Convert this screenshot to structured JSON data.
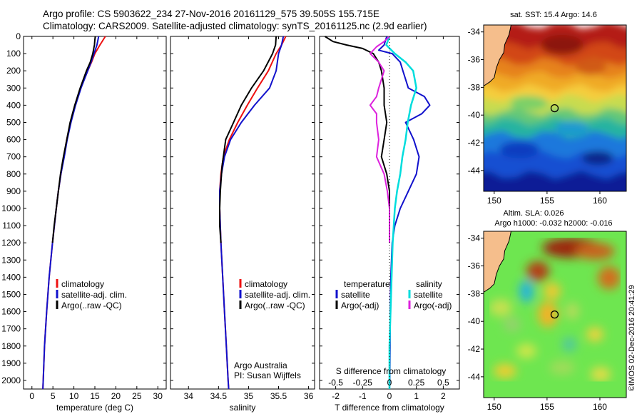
{
  "header": {
    "line1": "Argo profile: CS 5903622_234 27-Nov-2016 20161129_575 39.505S 155.715E",
    "line2": "Climatology: CARS2009. Satellite-adjusted climatology: synTS_20161125.nc (2.9d earlier)"
  },
  "colors": {
    "climatology": "#ee1111",
    "satellite": "#1111cc",
    "argo": "#000000",
    "sat_salinity": "#00dddd",
    "argo_adj_salinity": "#dd22dd",
    "land": "#f5be8c"
  },
  "chart_data": [
    {
      "type": "line",
      "title": "",
      "xlabel": "temperature (deg C)",
      "ylabel": "",
      "xlim": [
        -2,
        32
      ],
      "ylim": [
        2050,
        0
      ],
      "x_ticks": [
        "0",
        "5",
        "10",
        "15",
        "20",
        "25",
        "30"
      ],
      "y_ticks": [
        "0",
        "100",
        "200",
        "300",
        "400",
        "500",
        "600",
        "700",
        "800",
        "900",
        "1000",
        "1100",
        "1200",
        "1300",
        "1400",
        "1500",
        "1600",
        "1700",
        "1800",
        "1900",
        "2000"
      ],
      "legend": [
        "climatology",
        "satellite-adj. clim.",
        "Argo(..raw -QC)"
      ],
      "series": [
        {
          "name": "climatology",
          "depth": [
            0,
            50,
            100,
            150,
            200,
            300,
            400,
            500,
            600,
            700,
            800,
            900,
            1000,
            1200,
            1400,
            1600,
            1800,
            2000,
            2050
          ],
          "values": [
            17.5,
            16.2,
            15.0,
            14.2,
            13.3,
            11.6,
            10.3,
            9.2,
            8.3,
            7.6,
            6.9,
            6.3,
            5.8,
            4.9,
            4.1,
            3.5,
            3.0,
            2.7,
            2.6
          ]
        },
        {
          "name": "satellite-adj. clim.",
          "depth": [
            0,
            50,
            100,
            150,
            200,
            300,
            400,
            500,
            600,
            700,
            800,
            900,
            1000,
            1200,
            1400,
            1600,
            1800,
            2000,
            2050
          ],
          "values": [
            15.9,
            15.5,
            14.8,
            14.1,
            13.3,
            11.7,
            10.4,
            9.3,
            8.4,
            7.7,
            6.9,
            6.3,
            5.8,
            4.9,
            4.1,
            3.5,
            3.0,
            2.7,
            2.6
          ]
        },
        {
          "name": "Argo(..raw -QC)",
          "depth": [
            0,
            20,
            50,
            100,
            150,
            200,
            300,
            400,
            500,
            600,
            700,
            800,
            900,
            1000,
            1100,
            1200
          ],
          "values": [
            15.1,
            15.0,
            14.9,
            14.5,
            13.9,
            13.0,
            11.5,
            10.2,
            9.1,
            8.3,
            7.5,
            6.8,
            6.3,
            5.8,
            5.3,
            4.9
          ]
        }
      ]
    },
    {
      "type": "line",
      "title": "",
      "xlabel": "salinity",
      "ylabel": "",
      "xlim": [
        33.7,
        36.1
      ],
      "ylim": [
        2050,
        0
      ],
      "x_ticks": [
        "34",
        "34.5",
        "35",
        "35.5",
        "36"
      ],
      "legend": [
        "climatology",
        "satellite-adj. clim.",
        "Argo(..raw -QC)"
      ],
      "annotation": [
        "Argo Australia",
        "PI: Susan Wijffels"
      ],
      "series": [
        {
          "name": "climatology",
          "depth": [
            0,
            50,
            100,
            200,
            300,
            400,
            500,
            600,
            700,
            800,
            900,
            1000,
            1200,
            1400,
            1600,
            1800,
            2000,
            2050
          ],
          "values": [
            35.62,
            35.55,
            35.46,
            35.33,
            35.15,
            34.98,
            34.82,
            34.68,
            34.58,
            34.54,
            34.52,
            34.52,
            34.54,
            34.57,
            34.6,
            34.63,
            34.66,
            34.67
          ]
        },
        {
          "name": "satellite-adj. clim.",
          "depth": [
            0,
            50,
            100,
            200,
            300,
            400,
            500,
            600,
            700,
            800,
            900,
            1000,
            1200,
            1400,
            1600,
            1800,
            2000,
            2050
          ],
          "values": [
            35.58,
            35.55,
            35.5,
            35.46,
            35.35,
            35.1,
            34.88,
            34.7,
            34.6,
            34.55,
            34.52,
            34.52,
            34.54,
            34.57,
            34.6,
            34.63,
            34.66,
            34.67
          ]
        },
        {
          "name": "Argo(..raw -QC)",
          "depth": [
            0,
            50,
            100,
            200,
            300,
            400,
            500,
            600,
            700,
            750,
            800,
            900,
            1000,
            1100,
            1200
          ],
          "values": [
            35.46,
            35.45,
            35.4,
            35.25,
            35.05,
            34.88,
            34.75,
            34.62,
            34.58,
            34.56,
            34.55,
            34.53,
            34.52,
            34.52,
            34.54
          ]
        }
      ]
    },
    {
      "type": "line",
      "title": "",
      "xlabel": "T difference from climatology",
      "ylabel": "",
      "xlim": [
        -2.6,
        2.6
      ],
      "ylim": [
        2050,
        0
      ],
      "x_ticks": [
        "-2",
        "-1",
        "0",
        "1",
        "2"
      ],
      "top_label": "S difference from climatology",
      "top_ticks": [
        "-0.5",
        "-0.25",
        "0",
        "0.25",
        "0.5"
      ],
      "legend": {
        "temperature": [
          "satellite",
          "Argo(-adj)"
        ],
        "salinity": [
          "satellite",
          "Argo(-adj)"
        ]
      },
      "series": [
        {
          "name": "temperature satellite",
          "depth": [
            0,
            50,
            80,
            100,
            150,
            200,
            250,
            300,
            350,
            400,
            450,
            500,
            600,
            700,
            800,
            900,
            1000,
            1100,
            1200,
            1400,
            1600,
            1800,
            2000,
            2050
          ],
          "values": [
            -0.1,
            -0.2,
            -0.4,
            0.1,
            0.4,
            0.5,
            0.6,
            0.7,
            1.3,
            1.5,
            1.2,
            0.6,
            0.9,
            1.1,
            1.0,
            0.7,
            0.4,
            0.2,
            0.1,
            0.05,
            0.03,
            0.02,
            0.01,
            0.0
          ]
        },
        {
          "name": "temperature Argo(-adj)",
          "depth": [
            0,
            30,
            50,
            70,
            100,
            150,
            200,
            300,
            400,
            500,
            600,
            700,
            800,
            900,
            1000,
            1100,
            1200
          ],
          "values": [
            -2.4,
            -2.1,
            -1.6,
            -1.0,
            -0.6,
            -0.4,
            -0.3,
            -0.2,
            -0.2,
            -0.1,
            -0.2,
            -0.3,
            -0.1,
            0.0,
            0.0,
            0.0,
            0.0
          ]
        },
        {
          "name": "salinity satellite",
          "depth": [
            0,
            50,
            100,
            150,
            200,
            300,
            400,
            500,
            600,
            700,
            800,
            900,
            1000,
            1200,
            1400,
            1600,
            1800,
            2000,
            2050
          ],
          "values": [
            0.0,
            -0.03,
            0.05,
            0.15,
            0.22,
            0.25,
            0.2,
            0.17,
            0.15,
            0.12,
            0.1,
            0.07,
            0.05,
            0.03,
            0.02,
            0.01,
            0.0,
            0.0,
            0.0
          ]
        },
        {
          "name": "salinity Argo(-adj)",
          "depth": [
            0,
            30,
            60,
            100,
            150,
            200,
            300,
            350,
            400,
            450,
            500,
            600,
            700,
            800,
            900,
            1000,
            1100,
            1200
          ],
          "values": [
            0.0,
            -0.05,
            -0.12,
            -0.18,
            -0.1,
            -0.05,
            -0.1,
            -0.12,
            -0.18,
            -0.12,
            -0.12,
            -0.1,
            -0.12,
            -0.05,
            -0.02,
            0.0,
            0.0,
            0.0
          ]
        }
      ]
    },
    {
      "type": "heatmap",
      "title": "sat. SST: 15.4 Argo: 14.6",
      "xlim": [
        149,
        162.5
      ],
      "ylim": [
        -45.5,
        -33.5
      ],
      "x_ticks": [
        "150",
        "155",
        "160"
      ],
      "y_ticks": [
        "-34",
        "-36",
        "-38",
        "-40",
        "-42",
        "-44"
      ],
      "marker": {
        "lon": 155.715,
        "lat": -39.505
      }
    },
    {
      "type": "heatmap",
      "title": "Altim. SLA: 0.026",
      "subtitle": "Argo h1000: -0.032 h2000: -0.016",
      "xlim": [
        149,
        162.5
      ],
      "ylim": [
        -45.5,
        -33.5
      ],
      "x_ticks": [
        "150",
        "155",
        "160"
      ],
      "y_ticks": [
        "-34",
        "-36",
        "-38",
        "-40",
        "-42",
        "-44"
      ],
      "marker": {
        "lon": 155.715,
        "lat": -39.505
      }
    }
  ],
  "footer": {
    "stamp": "©IMOS 02-Dec-2016 20:41:29"
  }
}
